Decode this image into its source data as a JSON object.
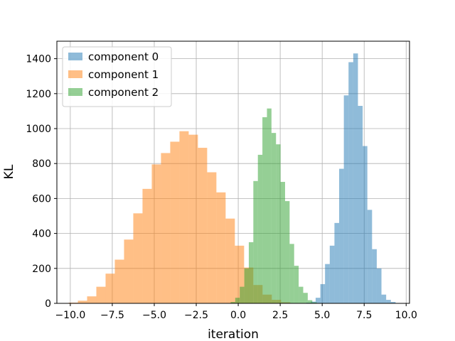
{
  "chart_data": {
    "type": "histogram",
    "title": "",
    "xlabel": "iteration",
    "ylabel": "KL",
    "xlim": [
      -10.8,
      10.2
    ],
    "ylim": [
      0,
      1500
    ],
    "xticks": [
      -10.0,
      -7.5,
      -5.0,
      -2.5,
      0.0,
      2.5,
      5.0,
      7.5,
      10.0
    ],
    "xtick_labels": [
      "−10.0",
      "−7.5",
      "−5.0",
      "−2.5",
      "0.0",
      "2.5",
      "5.0",
      "7.5",
      "10.0"
    ],
    "yticks": [
      0,
      200,
      400,
      600,
      800,
      1000,
      1200,
      1400
    ],
    "ytick_labels": [
      "0",
      "200",
      "400",
      "600",
      "800",
      "1000",
      "1200",
      "1400"
    ],
    "grid": true,
    "legend_position": "top-left",
    "series": [
      {
        "name": "component 0",
        "color": "#1f77b4",
        "alpha": 0.5,
        "bins": [
          {
            "x0": 4.05,
            "x1": 4.33,
            "count": 4
          },
          {
            "x0": 4.33,
            "x1": 4.61,
            "count": 10
          },
          {
            "x0": 4.61,
            "x1": 4.89,
            "count": 32
          },
          {
            "x0": 4.89,
            "x1": 5.17,
            "count": 110
          },
          {
            "x0": 5.17,
            "x1": 5.45,
            "count": 225
          },
          {
            "x0": 5.45,
            "x1": 5.73,
            "count": 330
          },
          {
            "x0": 5.73,
            "x1": 6.01,
            "count": 460
          },
          {
            "x0": 6.01,
            "x1": 6.29,
            "count": 770
          },
          {
            "x0": 6.29,
            "x1": 6.57,
            "count": 1190
          },
          {
            "x0": 6.57,
            "x1": 6.85,
            "count": 1380
          },
          {
            "x0": 6.85,
            "x1": 7.13,
            "count": 1430
          },
          {
            "x0": 7.13,
            "x1": 7.41,
            "count": 1130
          },
          {
            "x0": 7.41,
            "x1": 7.69,
            "count": 900
          },
          {
            "x0": 7.69,
            "x1": 7.97,
            "count": 535
          },
          {
            "x0": 7.97,
            "x1": 8.25,
            "count": 310
          },
          {
            "x0": 8.25,
            "x1": 8.53,
            "count": 200
          },
          {
            "x0": 8.53,
            "x1": 8.81,
            "count": 50
          },
          {
            "x0": 8.81,
            "x1": 9.09,
            "count": 20
          },
          {
            "x0": 9.09,
            "x1": 9.37,
            "count": 8
          }
        ]
      },
      {
        "name": "component 1",
        "color": "#ff7f0e",
        "alpha": 0.5,
        "bins": [
          {
            "x0": -10.1,
            "x1": -9.55,
            "count": 4
          },
          {
            "x0": -9.55,
            "x1": -9.0,
            "count": 15
          },
          {
            "x0": -9.0,
            "x1": -8.45,
            "count": 40
          },
          {
            "x0": -8.45,
            "x1": -7.9,
            "count": 95
          },
          {
            "x0": -7.9,
            "x1": -7.35,
            "count": 170
          },
          {
            "x0": -7.35,
            "x1": -6.8,
            "count": 250
          },
          {
            "x0": -6.8,
            "x1": -6.25,
            "count": 365
          },
          {
            "x0": -6.25,
            "x1": -5.7,
            "count": 515
          },
          {
            "x0": -5.7,
            "x1": -5.15,
            "count": 655
          },
          {
            "x0": -5.15,
            "x1": -4.6,
            "count": 795
          },
          {
            "x0": -4.6,
            "x1": -4.05,
            "count": 860
          },
          {
            "x0": -4.05,
            "x1": -3.5,
            "count": 925
          },
          {
            "x0": -3.5,
            "x1": -2.95,
            "count": 985
          },
          {
            "x0": -2.95,
            "x1": -2.4,
            "count": 965
          },
          {
            "x0": -2.4,
            "x1": -1.85,
            "count": 890
          },
          {
            "x0": -1.85,
            "x1": -1.3,
            "count": 750
          },
          {
            "x0": -1.3,
            "x1": -0.75,
            "count": 635
          },
          {
            "x0": -0.75,
            "x1": -0.2,
            "count": 485
          },
          {
            "x0": -0.2,
            "x1": 0.35,
            "count": 330
          },
          {
            "x0": 0.35,
            "x1": 0.9,
            "count": 205
          },
          {
            "x0": 0.9,
            "x1": 1.45,
            "count": 105
          },
          {
            "x0": 1.45,
            "x1": 2.0,
            "count": 50
          },
          {
            "x0": 2.0,
            "x1": 2.55,
            "count": 20
          },
          {
            "x0": 2.55,
            "x1": 3.1,
            "count": 6
          },
          {
            "x0": 3.1,
            "x1": 3.65,
            "count": 2
          }
        ]
      },
      {
        "name": "component 2",
        "color": "#2ca02c",
        "alpha": 0.5,
        "bins": [
          {
            "x0": -0.45,
            "x1": -0.18,
            "count": 8
          },
          {
            "x0": -0.18,
            "x1": 0.09,
            "count": 32
          },
          {
            "x0": 0.09,
            "x1": 0.36,
            "count": 95
          },
          {
            "x0": 0.36,
            "x1": 0.63,
            "count": 200
          },
          {
            "x0": 0.63,
            "x1": 0.9,
            "count": 350
          },
          {
            "x0": 0.9,
            "x1": 1.17,
            "count": 700
          },
          {
            "x0": 1.17,
            "x1": 1.44,
            "count": 850
          },
          {
            "x0": 1.44,
            "x1": 1.71,
            "count": 1065
          },
          {
            "x0": 1.71,
            "x1": 1.98,
            "count": 1115
          },
          {
            "x0": 1.98,
            "x1": 2.25,
            "count": 975
          },
          {
            "x0": 2.25,
            "x1": 2.52,
            "count": 910
          },
          {
            "x0": 2.52,
            "x1": 2.79,
            "count": 695
          },
          {
            "x0": 2.79,
            "x1": 3.06,
            "count": 585
          },
          {
            "x0": 3.06,
            "x1": 3.33,
            "count": 340
          },
          {
            "x0": 3.33,
            "x1": 3.6,
            "count": 215
          },
          {
            "x0": 3.6,
            "x1": 3.87,
            "count": 95
          },
          {
            "x0": 3.87,
            "x1": 4.14,
            "count": 60
          },
          {
            "x0": 4.14,
            "x1": 4.41,
            "count": 18
          },
          {
            "x0": 4.41,
            "x1": 4.68,
            "count": 6
          }
        ]
      }
    ]
  }
}
